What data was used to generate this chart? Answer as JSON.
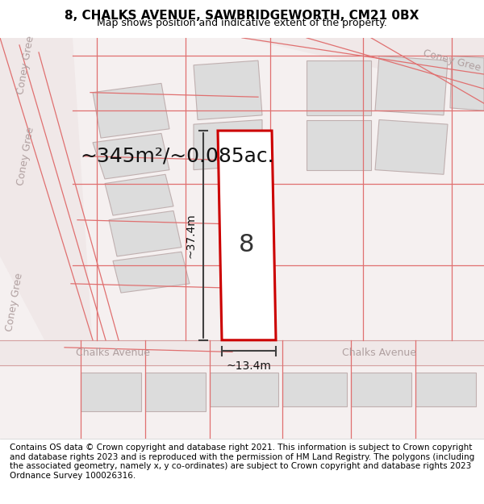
{
  "title": "8, CHALKS AVENUE, SAWBRIDGEWORTH, CM21 0BX",
  "subtitle": "Map shows position and indicative extent of the property.",
  "footer": "Contains OS data © Crown copyright and database right 2021. This information is subject to Crown copyright and database rights 2023 and is reproduced with the permission of HM Land Registry. The polygons (including the associated geometry, namely x, y co-ordinates) are subject to Crown copyright and database rights 2023 Ordnance Survey 100026316.",
  "area_label": "~345m²/~0.085ac.",
  "width_label": "~13.4m",
  "height_label": "~37.4m",
  "property_number": "8",
  "bg_color": "#f5f0f0",
  "map_bg": "#f5f0f0",
  "road_color": "#e8d8d8",
  "building_color": "#e0e0e0",
  "building_edge_color": "#c8b8b8",
  "property_fill": "#ffffff",
  "property_edge": "#cc0000",
  "street_label_color": "#b0a0a0",
  "dim_line_color": "#404040",
  "title_fontsize": 11,
  "subtitle_fontsize": 9,
  "area_fontsize": 18,
  "footer_fontsize": 7.5
}
